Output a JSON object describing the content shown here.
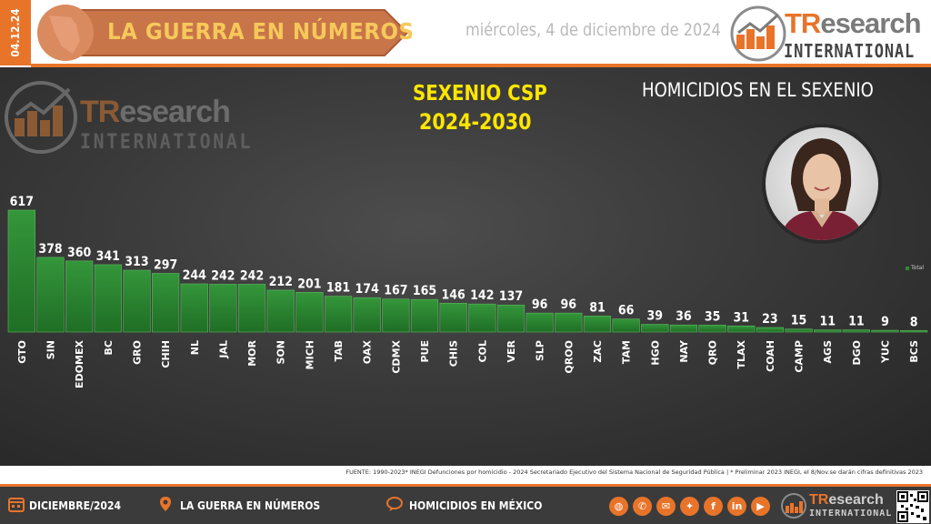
{
  "header": {
    "date_code": "04.12.24",
    "banner_title": "LA GUERRA EN NÚMEROS",
    "date_text": "miércoles, 4 de diciembre de 2024",
    "logo_main_orange": "TR",
    "logo_main_gray": "esearch",
    "logo_sub": "INTERNATIONAL"
  },
  "watermark": {
    "tr": "TR",
    "esearch": "esearch",
    "international": "INTERNATIONAL"
  },
  "panel": {
    "sexenio_line1": "SEXENIO CSP",
    "sexenio_line2": "2024-2030",
    "legend_label": "Total"
  },
  "chart_data": {
    "type": "bar",
    "title": "HOMICIDIOS EN EL SEXENIO",
    "categories": [
      "GTO",
      "SIN",
      "EDOMEX",
      "BC",
      "GRO",
      "CHIH",
      "NL",
      "JAL",
      "MOR",
      "SON",
      "MICH",
      "TAB",
      "OAX",
      "CDMX",
      "PUE",
      "CHIS",
      "COL",
      "VER",
      "SLP",
      "QROO",
      "ZAC",
      "TAM",
      "HGO",
      "NAY",
      "QRO",
      "TLAX",
      "COAH",
      "CAMP",
      "AGS",
      "DGO",
      "YUC",
      "BCS"
    ],
    "series": [
      {
        "name": "Total",
        "values": [
          617,
          378,
          360,
          341,
          313,
          297,
          244,
          242,
          242,
          212,
          201,
          181,
          174,
          167,
          165,
          146,
          142,
          137,
          96,
          96,
          81,
          66,
          39,
          36,
          35,
          31,
          23,
          15,
          11,
          11,
          9,
          8
        ]
      }
    ],
    "bar_color": "#2d8a33",
    "grid": false,
    "legend_position": "right"
  },
  "source_text": "FUENTE: 1990-2023* INEGI Defunciones por homicidio - 2024 Secretariado Ejecutivo del Sistema Nacional de Seguridad Pública | * Preliminar 2023 INEGI, el 8/Nov.se darán cifras definitivas 2023",
  "footer": {
    "item1": "DICIEMBRE/2024",
    "item2": "LA GUERRA EN NÚMEROS",
    "item3": "HOMICIDIOS EN MÉXICO",
    "logo_orange": "TR",
    "logo_gray": "esearch",
    "logo_sub": "INTERNATIONAL",
    "social_icons": [
      "globe-icon",
      "whatsapp-icon",
      "email-icon",
      "twitter-icon",
      "facebook-icon",
      "linkedin-icon",
      "youtube-icon"
    ]
  },
  "colors": {
    "accent": "#e8742a",
    "yellow": "#ffe600",
    "panel_bg": "#3a3a3a",
    "footer_bg": "#3b3b3b"
  }
}
